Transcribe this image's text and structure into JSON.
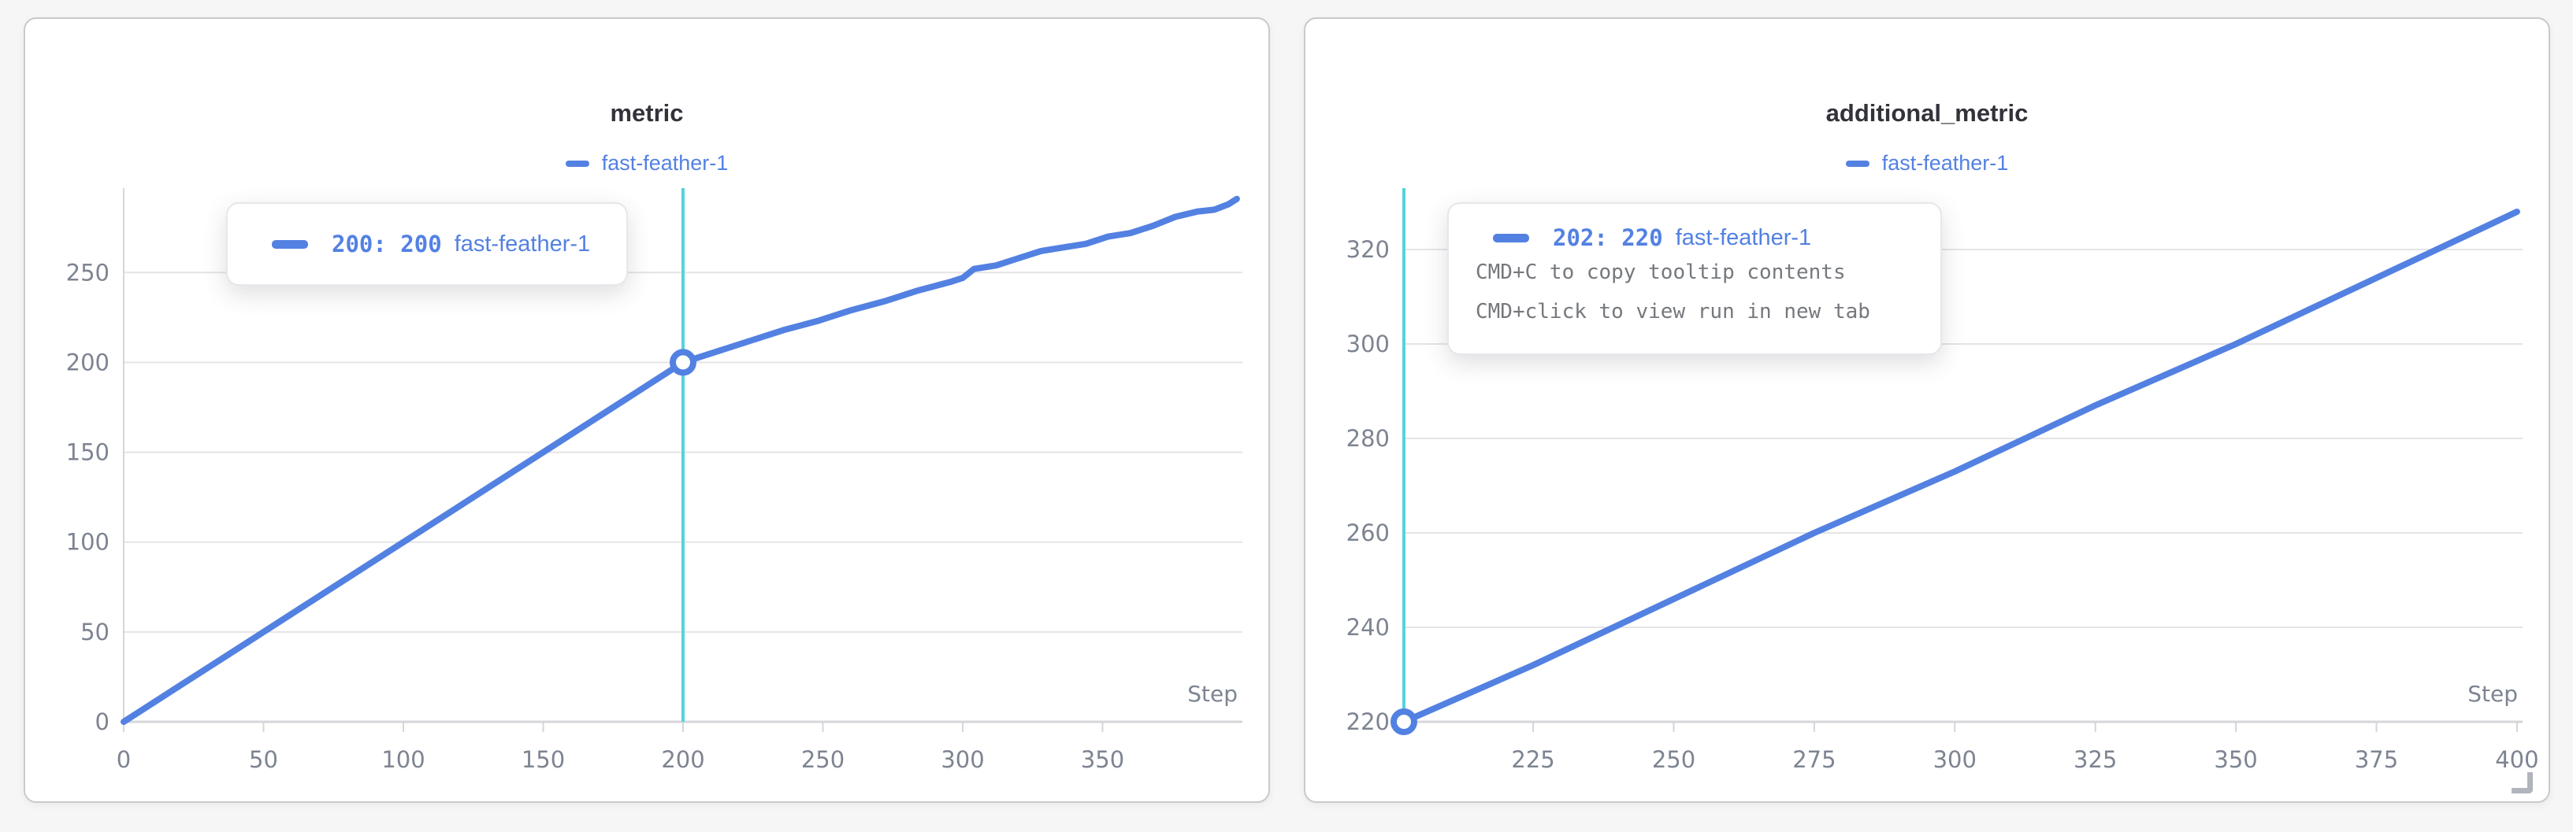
{
  "colors": {
    "line": "#5381e2",
    "crosshair": "#55d3dd",
    "tick": "#7d8491",
    "grid": "#e4e4e8",
    "axis": "#d6d6da",
    "title": "#32333a",
    "hint": "#75787d",
    "panel_border": "#c9c9ce",
    "background": "#f6f6f7"
  },
  "panels": [
    {
      "title": "metric",
      "legend_label": "fast-feather-1",
      "tooltip": {
        "value_text": "200: 200",
        "run_name": "fast-feather-1",
        "hints": []
      }
    },
    {
      "title": "additional_metric",
      "legend_label": "fast-feather-1",
      "tooltip": {
        "value_text": "202: 220",
        "run_name": "fast-feather-1",
        "hints": [
          "CMD+C to copy tooltip contents",
          "CMD+click to view run in new tab"
        ]
      }
    }
  ],
  "chart_data": [
    {
      "type": "line",
      "title": "metric",
      "xlabel": "Step",
      "legend": [
        "fast-feather-1"
      ],
      "legend_position": "top-center",
      "grid": true,
      "xlim": [
        0,
        400
      ],
      "ylim": [
        0,
        297
      ],
      "x_ticks": [
        0,
        50,
        100,
        150,
        200,
        250,
        300,
        350
      ],
      "y_ticks": [
        0,
        50,
        100,
        150,
        200,
        250
      ],
      "crosshair_x": 200,
      "highlight_point": {
        "x": 200,
        "y": 200,
        "label": "200: 200"
      },
      "series": [
        {
          "name": "fast-feather-1",
          "points": [
            [
              0,
              0
            ],
            [
              20,
              20
            ],
            [
              40,
              40
            ],
            [
              60,
              60
            ],
            [
              80,
              80
            ],
            [
              100,
              100
            ],
            [
              120,
              120
            ],
            [
              140,
              140
            ],
            [
              160,
              160
            ],
            [
              180,
              180
            ],
            [
              200,
              200
            ],
            [
              212,
              206
            ],
            [
              224,
              212
            ],
            [
              236,
              218
            ],
            [
              248,
              223
            ],
            [
              260,
              229
            ],
            [
              272,
              234
            ],
            [
              284,
              240
            ],
            [
              296,
              245
            ],
            [
              300,
              247
            ],
            [
              304,
              252
            ],
            [
              312,
              254
            ],
            [
              320,
              258
            ],
            [
              328,
              262
            ],
            [
              336,
              264
            ],
            [
              344,
              266
            ],
            [
              352,
              270
            ],
            [
              360,
              272
            ],
            [
              368,
              276
            ],
            [
              376,
              281
            ],
            [
              384,
              284
            ],
            [
              390,
              285
            ],
            [
              395,
              288
            ],
            [
              398,
              291
            ]
          ]
        }
      ]
    },
    {
      "type": "line",
      "title": "additional_metric",
      "xlabel": "Step",
      "legend": [
        "fast-feather-1"
      ],
      "legend_position": "top-center",
      "grid": true,
      "xlim": [
        202,
        401
      ],
      "ylim": [
        220,
        333
      ],
      "x_ticks": [
        225,
        250,
        275,
        300,
        325,
        350,
        375,
        400
      ],
      "y_ticks": [
        220,
        240,
        260,
        280,
        300,
        320
      ],
      "crosshair_x": 202,
      "highlight_point": {
        "x": 202,
        "y": 220,
        "label": "202: 220"
      },
      "series": [
        {
          "name": "fast-feather-1",
          "points": [
            [
              202,
              220
            ],
            [
              225,
              232
            ],
            [
              250,
              246
            ],
            [
              275,
              260
            ],
            [
              300,
              273
            ],
            [
              325,
              287
            ],
            [
              350,
              300
            ],
            [
              375,
              314
            ],
            [
              400,
              328
            ]
          ]
        }
      ]
    }
  ]
}
